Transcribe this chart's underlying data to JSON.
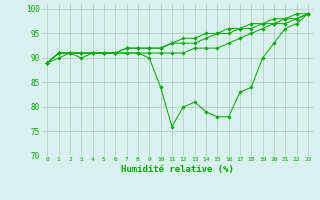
{
  "title": "",
  "xlabel": "Humidité relative (%)",
  "ylabel": "",
  "background_color": "#d8f0ee",
  "grid_color": "#aaccbb",
  "line_color": "#00aa00",
  "xlim": [
    -0.5,
    23.5
  ],
  "ylim": [
    70,
    101
  ],
  "yticks": [
    70,
    75,
    80,
    85,
    90,
    95,
    100
  ],
  "xticks": [
    0,
    1,
    2,
    3,
    4,
    5,
    6,
    7,
    8,
    9,
    10,
    11,
    12,
    13,
    14,
    15,
    16,
    17,
    18,
    19,
    20,
    21,
    22,
    23
  ],
  "series": [
    [
      89,
      90,
      91,
      90,
      91,
      91,
      91,
      91,
      91,
      90,
      84,
      76,
      80,
      81,
      79,
      78,
      78,
      83,
      84,
      90,
      93,
      96,
      97,
      99
    ],
    [
      89,
      91,
      91,
      91,
      91,
      91,
      91,
      91,
      91,
      91,
      91,
      91,
      91,
      92,
      92,
      92,
      93,
      94,
      95,
      96,
      97,
      97,
      98,
      99
    ],
    [
      89,
      91,
      91,
      91,
      91,
      91,
      91,
      92,
      92,
      92,
      92,
      93,
      93,
      93,
      94,
      95,
      95,
      96,
      96,
      97,
      97,
      98,
      98,
      99
    ],
    [
      89,
      91,
      91,
      91,
      91,
      91,
      91,
      92,
      92,
      92,
      92,
      93,
      94,
      94,
      95,
      95,
      96,
      96,
      97,
      97,
      98,
      98,
      99,
      99
    ]
  ]
}
